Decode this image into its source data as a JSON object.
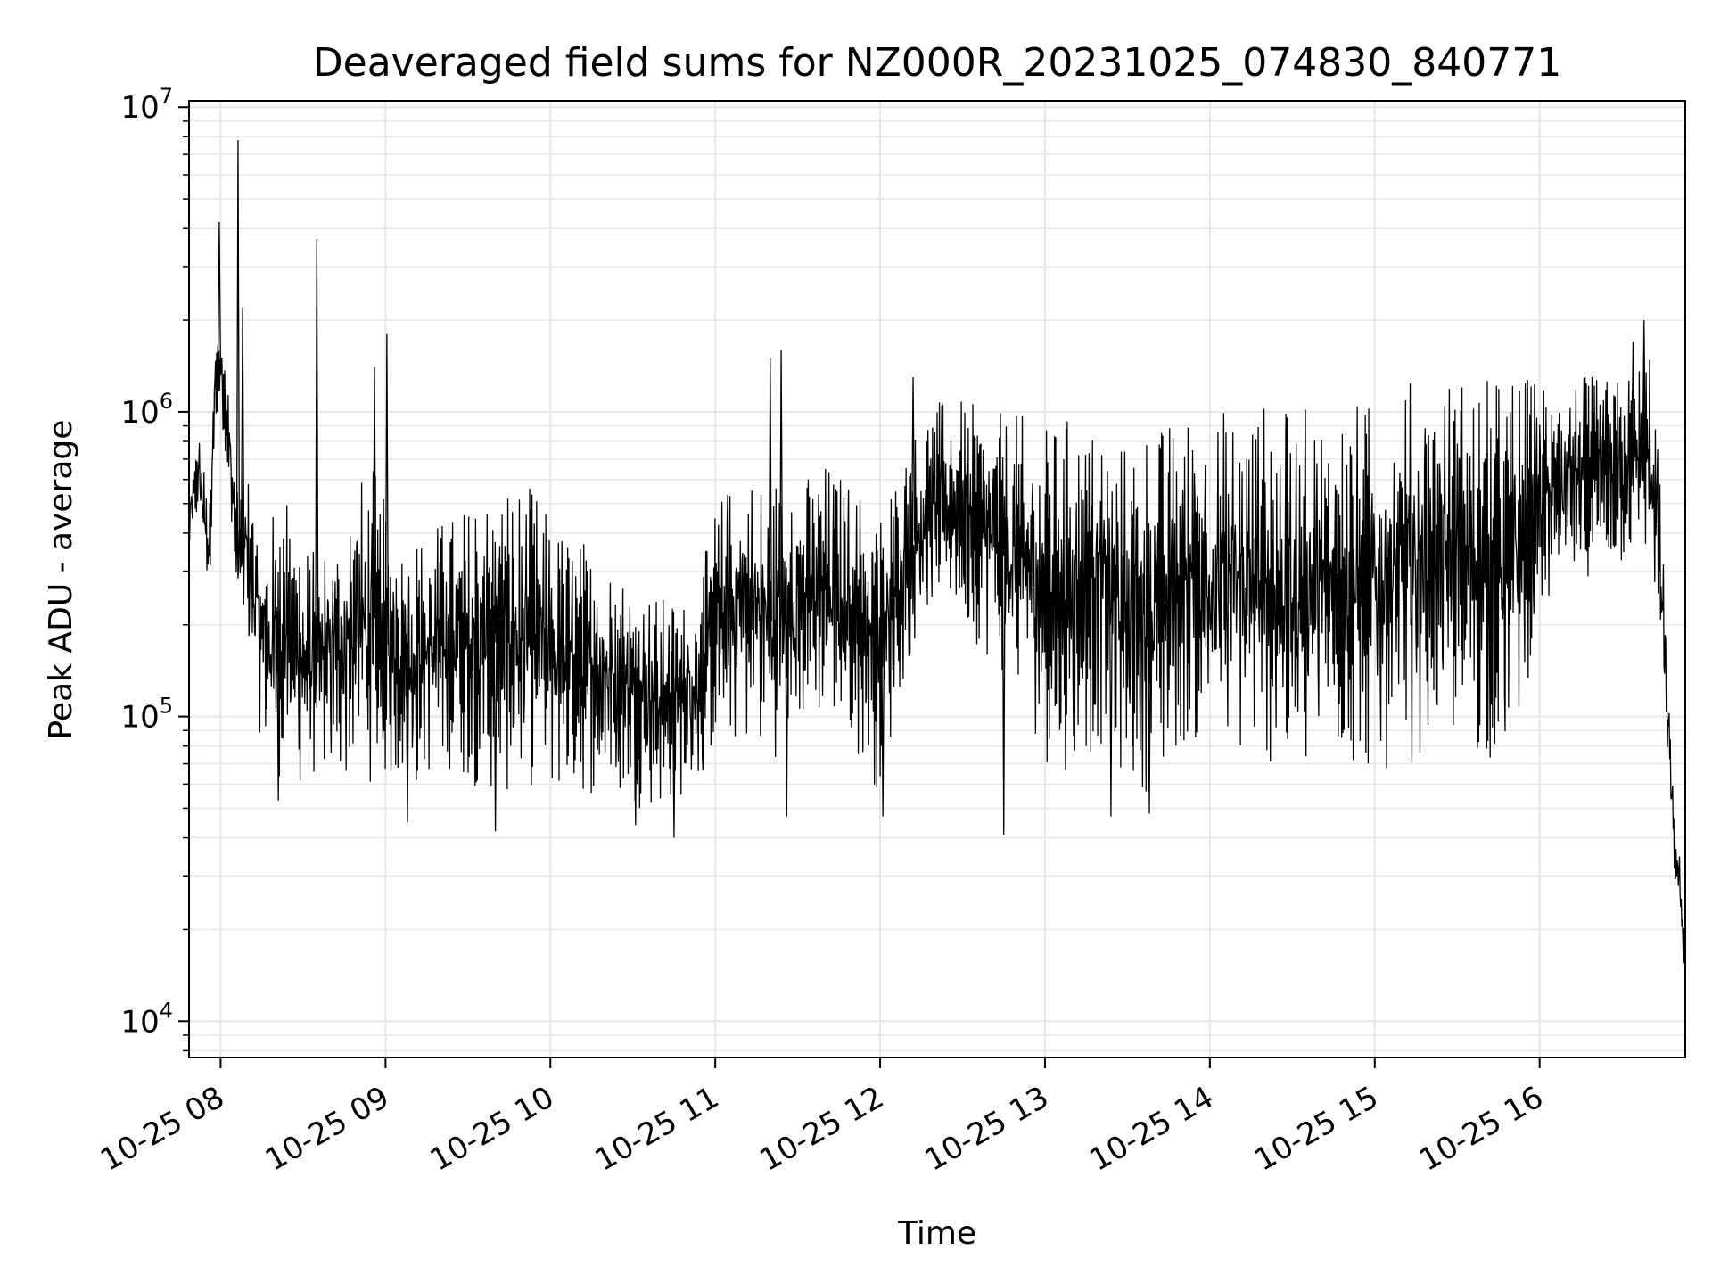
{
  "chart_data": {
    "type": "line",
    "title": "Deaveraged field sums for NZ000R_20231025_074830_840771",
    "xlabel": "Time",
    "ylabel": "Peak ADU - average",
    "xscale": "time",
    "yscale": "log",
    "xlim": [
      "2023-10-25T07:48:30",
      "2023-10-25T16:53:00"
    ],
    "ylim": [
      7600,
      10500000
    ],
    "grid": true,
    "line_color": "#000000",
    "grid_color": "#e6e6e6",
    "x_ticks": [
      {
        "value": "2023-10-25T08:00:00",
        "label": "10-25 08"
      },
      {
        "value": "2023-10-25T09:00:00",
        "label": "10-25 09"
      },
      {
        "value": "2023-10-25T10:00:00",
        "label": "10-25 10"
      },
      {
        "value": "2023-10-25T11:00:00",
        "label": "10-25 11"
      },
      {
        "value": "2023-10-25T12:00:00",
        "label": "10-25 12"
      },
      {
        "value": "2023-10-25T13:00:00",
        "label": "10-25 13"
      },
      {
        "value": "2023-10-25T14:00:00",
        "label": "10-25 14"
      },
      {
        "value": "2023-10-25T15:00:00",
        "label": "10-25 15"
      },
      {
        "value": "2023-10-25T16:00:00",
        "label": "10-25 16"
      }
    ],
    "y_ticks": [
      {
        "value": 10000,
        "base": "10",
        "exp": "4"
      },
      {
        "value": 100000,
        "base": "10",
        "exp": "5"
      },
      {
        "value": 1000000,
        "base": "10",
        "exp": "6"
      },
      {
        "value": 10000000,
        "base": "10",
        "exp": "7"
      }
    ],
    "series": [
      {
        "x": [
          "2023-10-25T07:48:30",
          "2023-10-25T07:52:00",
          "2023-10-25T07:56:00",
          "2023-10-25T07:58:00",
          "2023-10-25T08:00:00",
          "2023-10-25T08:02:00",
          "2023-10-25T08:04:00",
          "2023-10-25T08:06:00",
          "2023-10-25T08:10:00",
          "2023-10-25T08:15:00",
          "2023-10-25T08:20:00",
          "2023-10-25T08:25:00",
          "2023-10-25T08:30:00",
          "2023-10-25T08:35:00",
          "2023-10-25T08:40:00",
          "2023-10-25T08:45:00",
          "2023-10-25T08:50:00",
          "2023-10-25T08:55:00",
          "2023-10-25T09:00:00",
          "2023-10-25T09:10:00",
          "2023-10-25T09:20:00",
          "2023-10-25T09:30:00",
          "2023-10-25T09:40:00",
          "2023-10-25T09:50:00",
          "2023-10-25T09:55:00",
          "2023-10-25T10:00:00",
          "2023-10-25T10:10:00",
          "2023-10-25T10:20:00",
          "2023-10-25T10:30:00",
          "2023-10-25T10:40:00",
          "2023-10-25T10:50:00",
          "2023-10-25T10:55:00",
          "2023-10-25T11:00:00",
          "2023-10-25T11:10:00",
          "2023-10-25T11:20:00",
          "2023-10-25T11:30:00",
          "2023-10-25T11:40:00",
          "2023-10-25T11:50:00",
          "2023-10-25T12:00:00",
          "2023-10-25T12:10:00",
          "2023-10-25T12:20:00",
          "2023-10-25T12:30:00",
          "2023-10-25T12:40:00",
          "2023-10-25T12:50:00",
          "2023-10-25T13:00:00",
          "2023-10-25T13:10:00",
          "2023-10-25T13:20:00",
          "2023-10-25T13:30:00",
          "2023-10-25T13:40:00",
          "2023-10-25T13:50:00",
          "2023-10-25T14:00:00",
          "2023-10-25T14:10:00",
          "2023-10-25T14:20:00",
          "2023-10-25T14:30:00",
          "2023-10-25T14:40:00",
          "2023-10-25T14:50:00",
          "2023-10-25T15:00:00",
          "2023-10-25T15:10:00",
          "2023-10-25T15:20:00",
          "2023-10-25T15:30:00",
          "2023-10-25T15:40:00",
          "2023-10-25T15:50:00",
          "2023-10-25T16:00:00",
          "2023-10-25T16:10:00",
          "2023-10-25T16:20:00",
          "2023-10-25T16:30:00",
          "2023-10-25T16:36:00",
          "2023-10-25T16:40:00",
          "2023-10-25T16:43:00",
          "2023-10-25T16:46:00",
          "2023-10-25T16:49:00",
          "2023-10-25T16:51:00",
          "2023-10-25T16:53:00"
        ],
        "low": [
          300000,
          450000,
          220000,
          900000,
          1000000,
          700000,
          300000,
          200000,
          150000,
          80000,
          60000,
          70000,
          55000,
          65000,
          60000,
          60000,
          65000,
          60000,
          60000,
          55000,
          70000,
          60000,
          55000,
          55000,
          60000,
          55000,
          55000,
          55000,
          50000,
          50000,
          55000,
          60000,
          80000,
          80000,
          70000,
          90000,
          100000,
          80000,
          55000,
          150000,
          250000,
          200000,
          150000,
          120000,
          70000,
          65000,
          80000,
          60000,
          55000,
          80000,
          80000,
          70000,
          70000,
          60000,
          70000,
          65000,
          65000,
          65000,
          80000,
          80000,
          70000,
          75000,
          200000,
          250000,
          300000,
          300000,
          350000,
          300000,
          200000,
          80000,
          30000,
          22000,
          12000
        ],
        "high": [
          600000,
          900000,
          500000,
          1800000,
          2000000,
          1500000,
          1200000,
          600000,
          800000,
          400000,
          500000,
          600000,
          400000,
          350000,
          400000,
          500000,
          600000,
          700000,
          500000,
          400000,
          450000,
          500000,
          600000,
          600000,
          550000,
          450000,
          400000,
          350000,
          300000,
          250000,
          250000,
          300000,
          500000,
          700000,
          600000,
          600000,
          700000,
          600000,
          500000,
          800000,
          1100000,
          1100000,
          1000000,
          1000000,
          900000,
          1000000,
          900000,
          800000,
          900000,
          1000000,
          1000000,
          1100000,
          1100000,
          1000000,
          1100000,
          1100000,
          1100000,
          1300000,
          1300000,
          1400000,
          1300000,
          1400000,
          1300000,
          1400000,
          1300000,
          1300000,
          1500000,
          1800000,
          900000,
          200000,
          45000,
          35000,
          20000
        ]
      }
    ],
    "spikes_up": [
      {
        "x": "2023-10-25T08:06:20",
        "y": 7800000
      },
      {
        "x": "2023-10-25T07:59:30",
        "y": 4200000
      },
      {
        "x": "2023-10-25T08:35:00",
        "y": 3700000
      },
      {
        "x": "2023-10-25T08:08:00",
        "y": 2200000
      },
      {
        "x": "2023-10-25T09:00:30",
        "y": 1800000
      },
      {
        "x": "2023-10-25T08:56:00",
        "y": 1400000
      },
      {
        "x": "2023-10-25T11:20:00",
        "y": 1500000
      },
      {
        "x": "2023-10-25T11:24:00",
        "y": 1600000
      },
      {
        "x": "2023-10-25T12:12:00",
        "y": 1300000
      },
      {
        "x": "2023-10-25T16:38:00",
        "y": 2000000
      },
      {
        "x": "2023-10-25T16:34:00",
        "y": 1700000
      }
    ],
    "spikes_down": [
      {
        "x": "2023-10-25T09:40:00",
        "y": 42000
      },
      {
        "x": "2023-10-25T10:45:00",
        "y": 40000
      },
      {
        "x": "2023-10-25T12:45:00",
        "y": 41000
      },
      {
        "x": "2023-10-25T09:08:00",
        "y": 45000
      },
      {
        "x": "2023-10-25T13:24:00",
        "y": 47000
      },
      {
        "x": "2023-10-25T13:38:00",
        "y": 48000
      },
      {
        "x": "2023-10-25T12:01:00",
        "y": 47000
      },
      {
        "x": "2023-10-25T11:26:00",
        "y": 47000
      },
      {
        "x": "2023-10-25T10:31:00",
        "y": 44000
      },
      {
        "x": "2023-10-25T08:21:00",
        "y": 53000
      }
    ]
  }
}
